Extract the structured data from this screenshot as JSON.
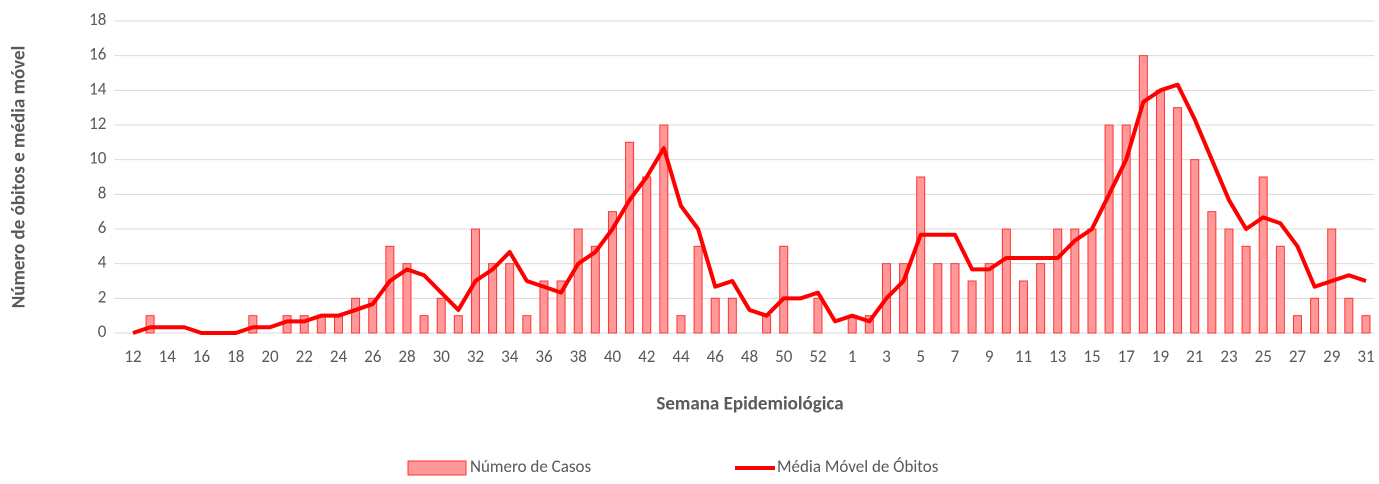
{
  "chart_data": {
    "type": "bar",
    "x_label": "Semana Epidemiológica",
    "y_label": "Número de óbitos e média móvel",
    "categories": [
      "12",
      null,
      "14",
      null,
      "16",
      null,
      "18",
      null,
      "20",
      null,
      "22",
      null,
      "24",
      null,
      "26",
      null,
      "28",
      null,
      "30",
      null,
      "32",
      null,
      "34",
      null,
      "36",
      null,
      "38",
      null,
      "40",
      null,
      "42",
      null,
      "44",
      null,
      "46",
      null,
      "48",
      null,
      "50",
      null,
      "52",
      null,
      "1",
      null,
      "3",
      null,
      "5",
      null,
      "7",
      null,
      "9",
      null,
      "11",
      null,
      "13",
      null,
      "15",
      null,
      "17",
      null,
      "19",
      null,
      "21",
      null,
      "23",
      null,
      "25",
      null,
      "27",
      null,
      "29",
      null,
      "31"
    ],
    "series": [
      {
        "name": "Número de Casos",
        "type": "bar",
        "color": "#ff9999",
        "edge_color": "#ff3333",
        "values": [
          0,
          1,
          0,
          0,
          0,
          0,
          0,
          1,
          0,
          1,
          1,
          1,
          1,
          2,
          2,
          5,
          4,
          1,
          2,
          1,
          6,
          4,
          4,
          1,
          3,
          3,
          6,
          5,
          7,
          11,
          9,
          12,
          1,
          5,
          2,
          2,
          0,
          1,
          5,
          0,
          2,
          0,
          1,
          1,
          4,
          4,
          9,
          4,
          4,
          3,
          4,
          6,
          3,
          4,
          6,
          6,
          6,
          12,
          12,
          16,
          14,
          13,
          10,
          7,
          6,
          5,
          9,
          5,
          1,
          2,
          6,
          2,
          1
        ]
      },
      {
        "name": "Média Móvel de Óbitos",
        "type": "line",
        "color": "#ff0000",
        "values": [
          0,
          0.33,
          0.33,
          0.33,
          0,
          0,
          0,
          0.33,
          0.33,
          0.67,
          0.67,
          1,
          1,
          1.33,
          1.67,
          3,
          3.67,
          3.33,
          2.33,
          1.33,
          3,
          3.67,
          4.67,
          3,
          2.67,
          2.33,
          4,
          4.67,
          6,
          7.67,
          9,
          10.67,
          7.33,
          6,
          2.67,
          3,
          1.33,
          1,
          2,
          2,
          2.33,
          0.67,
          1,
          0.67,
          2,
          3,
          5.67,
          5.67,
          5.67,
          3.67,
          3.67,
          4.33,
          4.33,
          4.33,
          4.33,
          5.33,
          6,
          8,
          10,
          13.33,
          14,
          14.33,
          12.33,
          10,
          7.67,
          6,
          6.67,
          6.33,
          5,
          2.67,
          3,
          3.33,
          3
        ]
      }
    ],
    "ylim": [
      0,
      18
    ],
    "yticks": [
      0,
      2,
      4,
      6,
      8,
      10,
      12,
      14,
      16,
      18
    ],
    "grid": true,
    "legend": "bottom"
  }
}
